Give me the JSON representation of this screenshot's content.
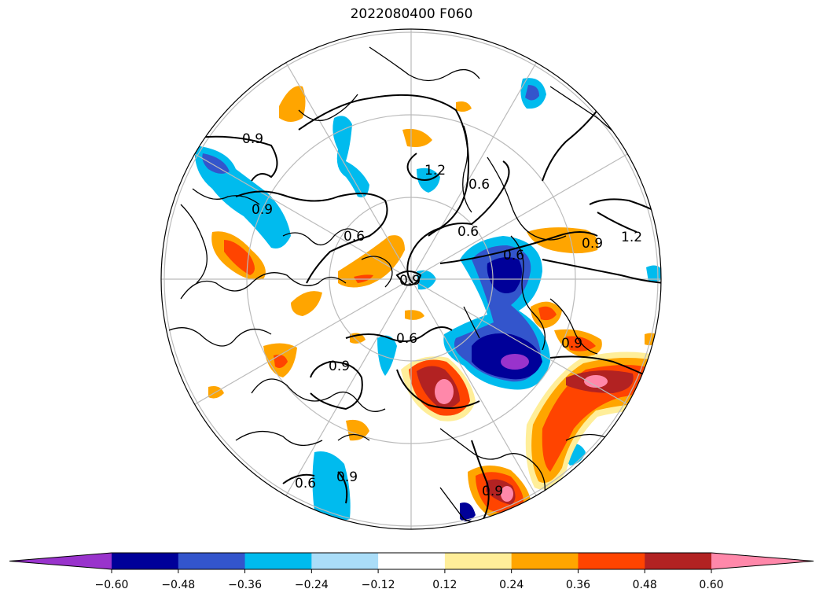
{
  "title": "2022080400 F060",
  "colorbar": {
    "extend": "both",
    "bins": [
      {
        "color": "#9933cc"
      },
      {
        "color": "#000099",
        "from": -0.6,
        "to": -0.48
      },
      {
        "color": "#3355cc",
        "from": -0.48,
        "to": -0.36
      },
      {
        "color": "#00bbee",
        "from": -0.36,
        "to": -0.24
      },
      {
        "color": "#aaddf8",
        "from": -0.24,
        "to": -0.12
      },
      {
        "color": "#ffffff",
        "from": -0.12,
        "to": 0.12
      },
      {
        "color": "#ffee99",
        "from": 0.12,
        "to": 0.24
      },
      {
        "color": "#ffa500",
        "from": 0.24,
        "to": 0.36
      },
      {
        "color": "#ff4400",
        "from": 0.36,
        "to": 0.48
      },
      {
        "color": "#b22222",
        "from": 0.48,
        "to": 0.6
      },
      {
        "color": "#ff88aa"
      }
    ],
    "tick_labels": [
      "−0.60",
      "−0.48",
      "−0.36",
      "−0.24",
      "−0.12",
      "0.12",
      "0.24",
      "0.36",
      "0.48",
      "0.60"
    ]
  },
  "contour_labels": [
    {
      "text": "0.9"
    },
    {
      "text": "0.9"
    },
    {
      "text": "0.6"
    },
    {
      "text": "0.9"
    },
    {
      "text": "0.6"
    },
    {
      "text": "0.9"
    },
    {
      "text": "1.2"
    },
    {
      "text": "0.6"
    },
    {
      "text": "0.9"
    },
    {
      "text": "0.6"
    },
    {
      "text": "0.9"
    },
    {
      "text": "0.6"
    },
    {
      "text": "0.6"
    },
    {
      "text": "0.9"
    },
    {
      "text": "1.2"
    },
    {
      "text": "0.9"
    }
  ]
}
